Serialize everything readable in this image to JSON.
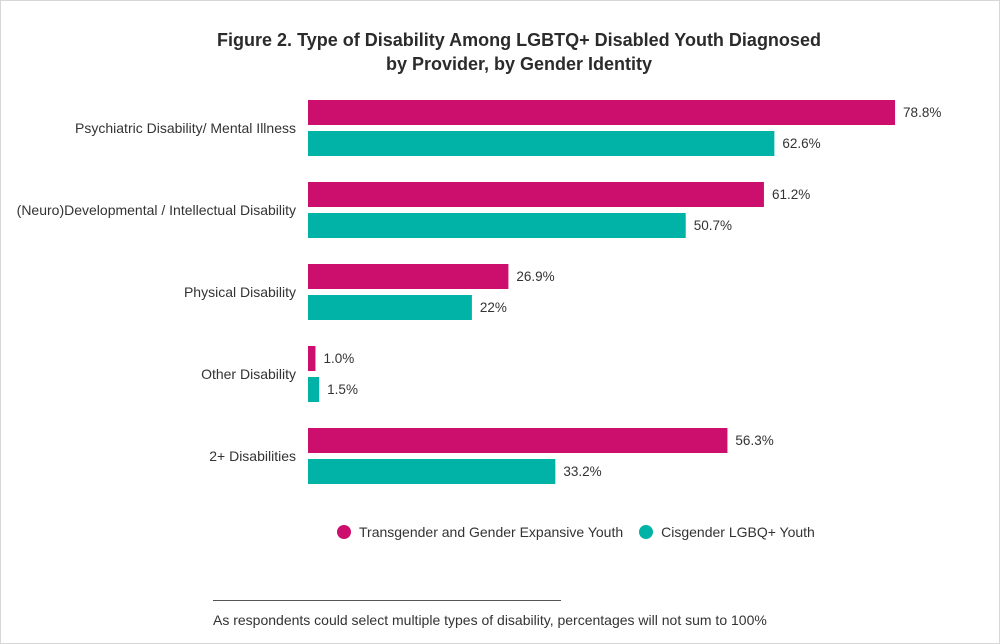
{
  "chart_data": {
    "type": "bar",
    "orientation": "horizontal",
    "title": [
      "Figure 2. Type of Disability Among LGBTQ+ Disabled Youth Diagnosed",
      "by Provider, by Gender Identity"
    ],
    "categories": [
      "Psychiatric Disability/ Mental Illness",
      "(Neuro)Developmental / Intellectual Disability",
      "Physical Disability",
      "Other Disability",
      "2+ Disabilities"
    ],
    "series": [
      {
        "name": "Transgender and Gender Expansive Youth",
        "color": "#cc0e6c",
        "values": [
          78.8,
          61.2,
          26.9,
          1.0,
          56.3
        ],
        "labels": [
          "78.8%",
          "61.2%",
          "26.9%",
          "1.0%",
          "56.3%"
        ]
      },
      {
        "name": "Cisgender LGBQ+ Youth",
        "color": "#00b3a6",
        "values": [
          62.6,
          50.7,
          22,
          1.5,
          33.2
        ],
        "labels": [
          "62.6%",
          "50.7%",
          "22%",
          "1.5%",
          "33.2%"
        ]
      }
    ],
    "xlim": [
      0,
      100
    ],
    "grid": false,
    "legend_position": "bottom",
    "footnote": "As respondents could select multiple types of disability, percentages will not sum to 100%"
  }
}
